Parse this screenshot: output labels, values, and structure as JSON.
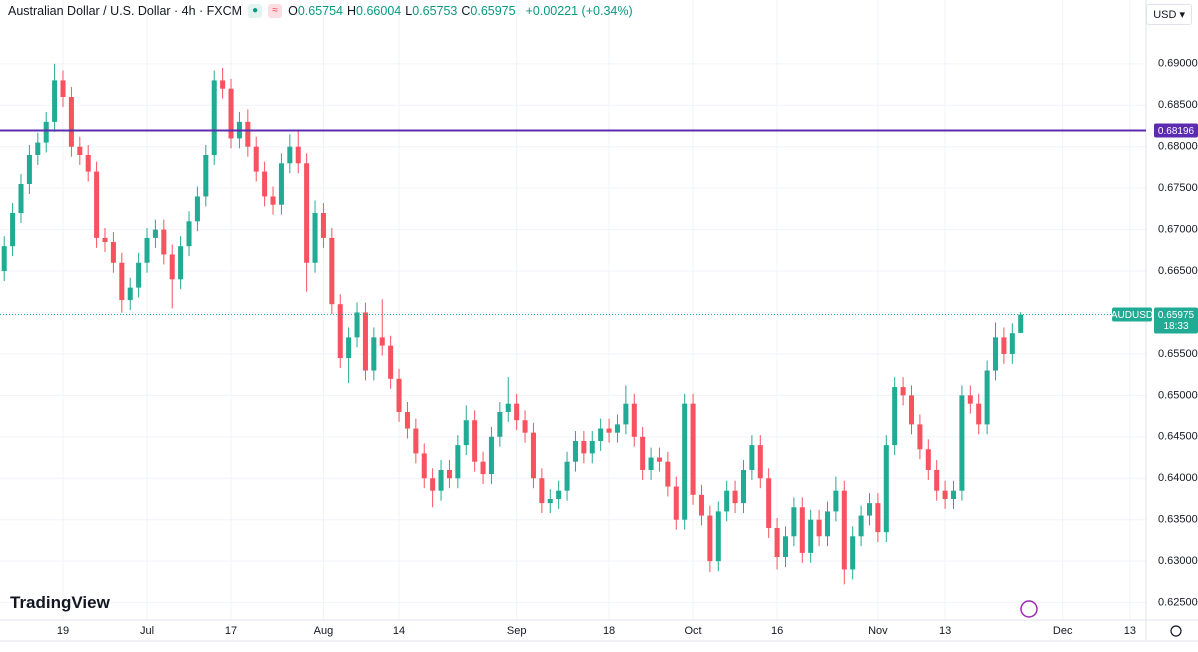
{
  "chart_data": {
    "type": "candlestick",
    "title": "Australian Dollar / U.S. Dollar · 4h · FXCM",
    "readout": [
      {
        "label": "O",
        "value": 0.65754
      },
      {
        "label": "H",
        "value": 0.66004
      },
      {
        "label": "L",
        "value": 0.65753
      },
      {
        "label": "C",
        "value": 0.65975
      }
    ],
    "change": "+0.00221 (+0.34%)",
    "currency": "USD",
    "brand": "TradingView",
    "up_color": "#22ab94",
    "down_color": "#f7525f",
    "grid": true,
    "hline": {
      "value": 0.68196,
      "color": "#5b2bb0"
    },
    "last_price": {
      "symbol": "AUDUSD",
      "value": 0.65975,
      "countdown": "18:33",
      "color": "#22ab94"
    },
    "xlim": [
      -0.5,
      135.2
    ],
    "xticks": [
      {
        "value": 7,
        "label": "19"
      },
      {
        "value": 17,
        "label": "Jul"
      },
      {
        "value": 27,
        "label": "17"
      },
      {
        "value": 38,
        "label": "Aug"
      },
      {
        "value": 47,
        "label": "14"
      },
      {
        "value": 61,
        "label": "Sep"
      },
      {
        "value": 72,
        "label": "18"
      },
      {
        "value": 82,
        "label": "Oct"
      },
      {
        "value": 92,
        "label": "16"
      },
      {
        "value": 104,
        "label": "Nov"
      },
      {
        "value": 112,
        "label": "13"
      },
      {
        "value": 126,
        "label": "Dec"
      },
      {
        "value": 134,
        "label": "13"
      }
    ],
    "ylim": [
      0.6229,
      0.6977
    ],
    "yticks": [
      {
        "value": 0.625,
        "label": "0.62500"
      },
      {
        "value": 0.63,
        "label": "0.63000"
      },
      {
        "value": 0.635,
        "label": "0.63500"
      },
      {
        "value": 0.64,
        "label": "0.64000"
      },
      {
        "value": 0.645,
        "label": "0.64500"
      },
      {
        "value": 0.65,
        "label": "0.65000"
      },
      {
        "value": 0.655,
        "label": "0.65500"
      },
      {
        "value": 0.66,
        "label": "0.66000"
      },
      {
        "value": 0.665,
        "label": "0.66500"
      },
      {
        "value": 0.67,
        "label": "0.67000"
      },
      {
        "value": 0.675,
        "label": "0.67500"
      },
      {
        "value": 0.68,
        "label": "0.68000"
      },
      {
        "value": 0.685,
        "label": "0.68500"
      },
      {
        "value": 0.69,
        "label": "0.69000"
      }
    ],
    "x": [
      0,
      1,
      2,
      3,
      4,
      5,
      6,
      7,
      8,
      9,
      10,
      11,
      12,
      13,
      14,
      15,
      16,
      17,
      18,
      19,
      20,
      21,
      22,
      23,
      24,
      25,
      26,
      27,
      28,
      29,
      30,
      31,
      32,
      33,
      34,
      35,
      36,
      37,
      38,
      39,
      40,
      41,
      42,
      43,
      44,
      45,
      46,
      47,
      48,
      49,
      50,
      51,
      52,
      53,
      54,
      55,
      56,
      57,
      58,
      59,
      60,
      61,
      62,
      63,
      64,
      65,
      66,
      67,
      68,
      69,
      70,
      71,
      72,
      73,
      74,
      75,
      76,
      77,
      78,
      79,
      80,
      81,
      82,
      83,
      84,
      85,
      86,
      87,
      88,
      89,
      90,
      91,
      92,
      93,
      94,
      95,
      96,
      97,
      98,
      99,
      100,
      101,
      102,
      103,
      104,
      105,
      106,
      107,
      108,
      109,
      110,
      111,
      112,
      113,
      114,
      115,
      116,
      117,
      118,
      119,
      120,
      121
    ],
    "open": [
      0.665,
      0.668,
      0.672,
      0.6755,
      0.679,
      0.6805,
      0.683,
      0.688,
      0.686,
      0.68,
      0.679,
      0.677,
      0.669,
      0.6685,
      0.666,
      0.6615,
      0.663,
      0.666,
      0.669,
      0.67,
      0.667,
      0.664,
      0.668,
      0.671,
      0.674,
      0.679,
      0.688,
      0.687,
      0.681,
      0.683,
      0.68,
      0.677,
      0.674,
      0.673,
      0.678,
      0.68,
      0.678,
      0.666,
      0.672,
      0.669,
      0.661,
      0.6545,
      0.657,
      0.66,
      0.653,
      0.657,
      0.656,
      0.652,
      0.648,
      0.646,
      0.643,
      0.64,
      0.6385,
      0.641,
      0.64,
      0.644,
      0.647,
      0.642,
      0.6405,
      0.645,
      0.648,
      0.649,
      0.647,
      0.6455,
      0.64,
      0.637,
      0.6375,
      0.6385,
      0.642,
      0.6445,
      0.643,
      0.6445,
      0.646,
      0.6455,
      0.6465,
      0.649,
      0.645,
      0.641,
      0.6425,
      0.642,
      0.639,
      0.635,
      0.649,
      0.638,
      0.6355,
      0.63,
      0.636,
      0.6385,
      0.637,
      0.641,
      0.644,
      0.64,
      0.634,
      0.6305,
      0.633,
      0.6365,
      0.631,
      0.635,
      0.633,
      0.636,
      0.6385,
      0.629,
      0.633,
      0.6355,
      0.637,
      0.6335,
      0.644,
      0.651,
      0.65,
      0.6465,
      0.6435,
      0.641,
      0.6385,
      0.6375,
      0.6385,
      0.65,
      0.649,
      0.6465,
      0.653,
      0.657,
      0.655,
      0.65754
    ],
    "high": [
      0.6692,
      0.6732,
      0.6767,
      0.6802,
      0.6817,
      0.6842,
      0.69,
      0.6892,
      0.6872,
      0.6812,
      0.6802,
      0.6782,
      0.6702,
      0.6697,
      0.6672,
      0.6642,
      0.6672,
      0.6702,
      0.6712,
      0.6712,
      0.6682,
      0.6692,
      0.6722,
      0.6752,
      0.6802,
      0.6892,
      0.6895,
      0.6882,
      0.6842,
      0.6845,
      0.6812,
      0.6782,
      0.6752,
      0.6792,
      0.6815,
      0.682,
      0.6792,
      0.6735,
      0.6732,
      0.6702,
      0.6622,
      0.6582,
      0.6612,
      0.6612,
      0.6582,
      0.6616,
      0.6572,
      0.6532,
      0.6492,
      0.6472,
      0.6442,
      0.6412,
      0.6422,
      0.6422,
      0.6452,
      0.6488,
      0.6482,
      0.6432,
      0.6462,
      0.6492,
      0.6522,
      0.6502,
      0.6482,
      0.6467,
      0.6412,
      0.6387,
      0.6397,
      0.6432,
      0.6457,
      0.6457,
      0.6457,
      0.6472,
      0.6472,
      0.6477,
      0.6512,
      0.6502,
      0.6462,
      0.6437,
      0.6437,
      0.6432,
      0.6402,
      0.6502,
      0.6502,
      0.6392,
      0.6367,
      0.6372,
      0.6397,
      0.6397,
      0.6422,
      0.6452,
      0.6452,
      0.6412,
      0.6352,
      0.6342,
      0.6377,
      0.6377,
      0.6362,
      0.6362,
      0.6372,
      0.6402,
      0.6397,
      0.6342,
      0.6367,
      0.6382,
      0.6382,
      0.6452,
      0.6522,
      0.6522,
      0.6512,
      0.6477,
      0.6447,
      0.6422,
      0.6397,
      0.6397,
      0.6512,
      0.6512,
      0.6502,
      0.6542,
      0.6588,
      0.6582,
      0.6587,
      0.66004
    ],
    "low": [
      0.6638,
      0.6668,
      0.6708,
      0.6743,
      0.6778,
      0.6793,
      0.6818,
      0.6848,
      0.6788,
      0.6778,
      0.6758,
      0.6678,
      0.6673,
      0.6648,
      0.66,
      0.6603,
      0.6618,
      0.6648,
      0.6678,
      0.6658,
      0.6605,
      0.6628,
      0.6668,
      0.6698,
      0.6728,
      0.6778,
      0.6858,
      0.6798,
      0.6798,
      0.6788,
      0.6758,
      0.6728,
      0.6718,
      0.6718,
      0.6768,
      0.6768,
      0.6625,
      0.6648,
      0.6678,
      0.6598,
      0.6533,
      0.6515,
      0.6558,
      0.6518,
      0.6518,
      0.6548,
      0.6508,
      0.6468,
      0.6448,
      0.6418,
      0.6388,
      0.6365,
      0.6373,
      0.6388,
      0.6388,
      0.6428,
      0.6408,
      0.6393,
      0.6393,
      0.6438,
      0.6468,
      0.6458,
      0.6443,
      0.6388,
      0.6358,
      0.6358,
      0.6363,
      0.6373,
      0.6408,
      0.6418,
      0.6418,
      0.6433,
      0.6443,
      0.6443,
      0.6453,
      0.6438,
      0.6398,
      0.6398,
      0.6408,
      0.6378,
      0.6338,
      0.6338,
      0.6368,
      0.6343,
      0.6287,
      0.6288,
      0.6348,
      0.6358,
      0.6358,
      0.6398,
      0.6388,
      0.6328,
      0.629,
      0.6293,
      0.6318,
      0.6298,
      0.6298,
      0.6318,
      0.6318,
      0.6348,
      0.6272,
      0.6278,
      0.6318,
      0.6343,
      0.6323,
      0.6323,
      0.6428,
      0.6488,
      0.6453,
      0.6423,
      0.6398,
      0.6373,
      0.6363,
      0.6363,
      0.6373,
      0.6478,
      0.6453,
      0.6453,
      0.6518,
      0.6538,
      0.6538,
      0.65753
    ],
    "close": [
      0.668,
      0.672,
      0.6755,
      0.679,
      0.6805,
      0.683,
      0.688,
      0.686,
      0.68,
      0.679,
      0.677,
      0.669,
      0.6685,
      0.666,
      0.6615,
      0.663,
      0.666,
      0.669,
      0.67,
      0.667,
      0.664,
      0.668,
      0.671,
      0.674,
      0.679,
      0.688,
      0.687,
      0.681,
      0.683,
      0.68,
      0.677,
      0.674,
      0.673,
      0.678,
      0.68,
      0.678,
      0.666,
      0.672,
      0.669,
      0.661,
      0.6545,
      0.657,
      0.66,
      0.653,
      0.657,
      0.656,
      0.652,
      0.648,
      0.646,
      0.643,
      0.64,
      0.6385,
      0.641,
      0.64,
      0.644,
      0.647,
      0.642,
      0.6405,
      0.645,
      0.648,
      0.649,
      0.647,
      0.6455,
      0.64,
      0.637,
      0.6375,
      0.6385,
      0.642,
      0.6445,
      0.643,
      0.6445,
      0.646,
      0.6455,
      0.6465,
      0.649,
      0.645,
      0.641,
      0.6425,
      0.642,
      0.639,
      0.635,
      0.649,
      0.638,
      0.6355,
      0.63,
      0.636,
      0.6385,
      0.637,
      0.641,
      0.644,
      0.64,
      0.634,
      0.6305,
      0.633,
      0.6365,
      0.631,
      0.635,
      0.633,
      0.636,
      0.6385,
      0.629,
      0.633,
      0.6355,
      0.637,
      0.6335,
      0.644,
      0.651,
      0.65,
      0.6465,
      0.6435,
      0.641,
      0.6385,
      0.6375,
      0.6385,
      0.65,
      0.649,
      0.6465,
      0.653,
      0.657,
      0.655,
      0.6575,
      0.65975
    ]
  }
}
